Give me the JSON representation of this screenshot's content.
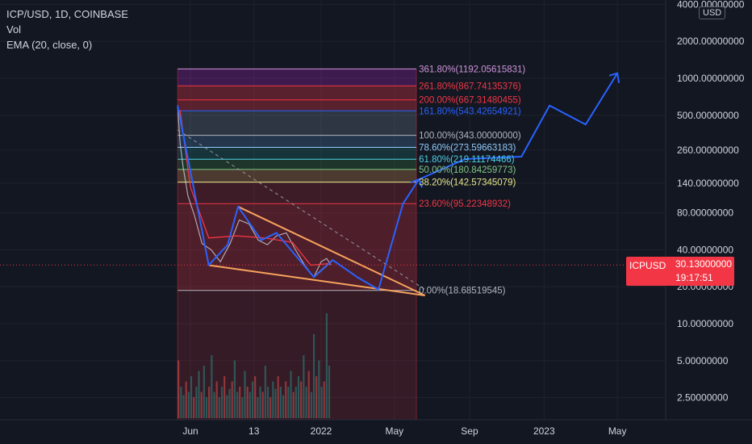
{
  "header": {
    "symbol_line": "ICP/USD, 1D, COINBASE",
    "volume_label": "Vol",
    "ema_label": "EMA (20, close, 0)"
  },
  "axis": {
    "unit_button": "USD",
    "y_scale": "log",
    "y_ticks": [
      {
        "value": 4000,
        "label": "4000.00000000"
      },
      {
        "value": 2000,
        "label": "2000.00000000"
      },
      {
        "value": 1000,
        "label": "1000.00000000"
      },
      {
        "value": 500,
        "label": "500.00000000"
      },
      {
        "value": 260,
        "label": "260.00000000"
      },
      {
        "value": 140,
        "label": "140.00000000"
      },
      {
        "value": 80,
        "label": "80.00000000"
      },
      {
        "value": 40,
        "label": "40.00000000"
      },
      {
        "value": 20,
        "label": "20.00000000"
      },
      {
        "value": 10,
        "label": "10.00000000"
      },
      {
        "value": 5,
        "label": "5.00000000"
      },
      {
        "value": 2.5,
        "label": "2.50000000"
      }
    ],
    "x_ticks": [
      {
        "date": "2021-06-01",
        "label": "Jun"
      },
      {
        "date": "2021-09-13",
        "label": "13"
      },
      {
        "date": "2022-01-01",
        "label": "2022"
      },
      {
        "date": "2022-05-01",
        "label": "May"
      },
      {
        "date": "2022-09-01",
        "label": "Sep"
      },
      {
        "date": "2023-01-01",
        "label": "2023"
      },
      {
        "date": "2023-05-01",
        "label": "May"
      }
    ]
  },
  "price_tag": {
    "symbol": "ICPUSD",
    "value": "30.13000000",
    "value_num": 30.13,
    "countdown": "19:17:51",
    "color": "#f23645"
  },
  "chart_data": {
    "type": "line",
    "y_scale": "log",
    "fib_levels": [
      {
        "label": "0.00%(18.68519545)",
        "price": 18.68519545,
        "color": "#b2b5be",
        "fill": "#f2364544"
      },
      {
        "label": "23.60%(95.22348932)",
        "price": 95.22348932,
        "color": "#f23645",
        "fill": "#f2364530"
      },
      {
        "label": "38.20%(142.57345079)",
        "price": 142.57345079,
        "color": "#e8e88a",
        "fill": "#f7a35c40"
      },
      {
        "label": "50.00%(180.84259773)",
        "price": 180.84259773,
        "color": "#81c784",
        "fill": "#4caf5033"
      },
      {
        "label": "61.80%(219.11174466)",
        "price": 219.11174466,
        "color": "#4dd0e1",
        "fill": "#26a69a33"
      },
      {
        "label": "78.60%(273.59663183)",
        "price": 273.59663183,
        "color": "#90caf9",
        "fill": "#64b5f633"
      },
      {
        "label": "100.00%(343.00000000)",
        "price": 343.0,
        "color": "#b2b5be",
        "fill": "#78909c44"
      },
      {
        "label": "161.80%(543.42654921)",
        "price": 543.42654921,
        "color": "#2962ff",
        "fill": "#f2364550"
      },
      {
        "label": "200.00%(667.31480455)",
        "price": 667.31480455,
        "color": "#f23645",
        "fill": "#f2364550"
      },
      {
        "label": "261.80%(867.74135376)",
        "price": 867.74135376,
        "color": "#f23645",
        "fill": "#9c27b050"
      },
      {
        "label": "361.80%(1192.05615831)",
        "price": 1192.05615831,
        "color": "#ce93d8",
        "fill": "#9c27b050"
      }
    ],
    "fib_range": {
      "start": "2021-05-11",
      "end": "2022-06-06"
    },
    "price_series": {
      "name": "ICPUSD",
      "approx_close": [
        {
          "date": "2021-05-11",
          "price": 600
        },
        {
          "date": "2021-05-15",
          "price": 300
        },
        {
          "date": "2021-05-20",
          "price": 190
        },
        {
          "date": "2021-05-28",
          "price": 110
        },
        {
          "date": "2021-06-08",
          "price": 75
        },
        {
          "date": "2021-06-20",
          "price": 45
        },
        {
          "date": "2021-07-05",
          "price": 40
        },
        {
          "date": "2021-07-20",
          "price": 32
        },
        {
          "date": "2021-08-05",
          "price": 45
        },
        {
          "date": "2021-08-20",
          "price": 70
        },
        {
          "date": "2021-09-05",
          "price": 65
        },
        {
          "date": "2021-09-20",
          "price": 48
        },
        {
          "date": "2021-10-05",
          "price": 44
        },
        {
          "date": "2021-10-20",
          "price": 52
        },
        {
          "date": "2021-11-05",
          "price": 55
        },
        {
          "date": "2021-11-20",
          "price": 40
        },
        {
          "date": "2021-12-05",
          "price": 30
        },
        {
          "date": "2021-12-20",
          "price": 24
        },
        {
          "date": "2022-01-01",
          "price": 32
        },
        {
          "date": "2022-01-10",
          "price": 34
        },
        {
          "date": "2022-01-17",
          "price": 30.13
        }
      ]
    },
    "ema_series": {
      "approx": [
        {
          "date": "2021-05-15",
          "price": 550
        },
        {
          "date": "2021-06-01",
          "price": 130
        },
        {
          "date": "2021-07-01",
          "price": 50
        },
        {
          "date": "2021-08-15",
          "price": 52
        },
        {
          "date": "2021-10-01",
          "price": 50
        },
        {
          "date": "2021-11-15",
          "price": 46
        },
        {
          "date": "2021-12-15",
          "price": 30
        },
        {
          "date": "2022-01-17",
          "price": 31
        }
      ]
    },
    "wedge_lines": [
      {
        "points": [
          {
            "date": "2021-07-01",
            "price": 30
          },
          {
            "date": "2022-06-20",
            "price": 17
          }
        ]
      },
      {
        "points": [
          {
            "date": "2021-08-18",
            "price": 90
          },
          {
            "date": "2022-06-20",
            "price": 17
          }
        ]
      },
      {
        "points": [
          {
            "date": "2021-12-20",
            "price": 24
          },
          {
            "date": "2022-01-20",
            "price": 33
          }
        ]
      }
    ],
    "dashed_trendline": {
      "points": [
        {
          "date": "2021-05-11",
          "price": 380
        },
        {
          "date": "2022-06-20",
          "price": 19
        }
      ]
    },
    "blue_projection": {
      "points": [
        {
          "date": "2021-05-11",
          "price": 600
        },
        {
          "date": "2021-07-01",
          "price": 30
        },
        {
          "date": "2021-08-01",
          "price": 44
        },
        {
          "date": "2021-08-18",
          "price": 90
        },
        {
          "date": "2021-09-25",
          "price": 48
        },
        {
          "date": "2021-10-20",
          "price": 55
        },
        {
          "date": "2021-12-20",
          "price": 24
        },
        {
          "date": "2022-01-20",
          "price": 33
        },
        {
          "date": "2022-03-01",
          "price": 24
        },
        {
          "date": "2022-04-05",
          "price": 19
        },
        {
          "date": "2022-05-15",
          "price": 95
        },
        {
          "date": "2022-06-10",
          "price": 150
        },
        {
          "date": "2022-08-25",
          "price": 220
        },
        {
          "date": "2022-11-25",
          "price": 230
        },
        {
          "date": "2023-01-10",
          "price": 600
        },
        {
          "date": "2023-03-10",
          "price": 420
        },
        {
          "date": "2023-05-01",
          "price": 1100
        },
        {
          "date": "2023-05-15",
          "price": 900
        }
      ]
    },
    "volume": {
      "start": "2021-05-11",
      "end": "2022-01-17",
      "levels": [
        0.55,
        0.3,
        0.22,
        0.35,
        0.25,
        0.4,
        0.2,
        0.3,
        0.45,
        0.25,
        0.5,
        0.2,
        0.3,
        0.6,
        0.25,
        0.35,
        0.2,
        0.3,
        0.4,
        0.22,
        0.28,
        0.35,
        0.55,
        0.25,
        0.3,
        0.2,
        0.45,
        0.3,
        0.25,
        0.35,
        0.4,
        0.2,
        0.3,
        0.25,
        0.5,
        0.3,
        0.2,
        0.35,
        0.28,
        0.4,
        0.3,
        0.22,
        0.35,
        0.3,
        0.45,
        0.25,
        0.3,
        0.4,
        0.35,
        0.6,
        0.3,
        0.45,
        0.25,
        0.8,
        0.4,
        0.55,
        0.3,
        0.35,
        1.0,
        0.5
      ]
    }
  }
}
